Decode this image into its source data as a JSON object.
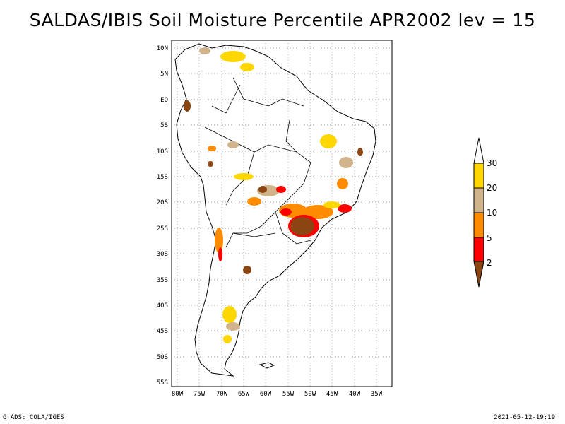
{
  "title": "SALDAS/IBIS Soil Moisture Percentile APR2002 lev = 15",
  "map": {
    "y_ticks": [
      "10N",
      "5N",
      "EQ",
      "5S",
      "10S",
      "15S",
      "20S",
      "25S",
      "30S",
      "35S",
      "40S",
      "45S",
      "50S",
      "55S"
    ],
    "x_ticks": [
      "80W",
      "75W",
      "70W",
      "65W",
      "60W",
      "55W",
      "50W",
      "45W",
      "40W",
      "35W"
    ]
  },
  "legend": {
    "colors": [
      "#8b4513",
      "#ff0000",
      "#ff8c00",
      "#d2b48c",
      "#ffd700",
      "#ffffff"
    ],
    "labels": [
      "2",
      "5",
      "10",
      "20",
      "30"
    ]
  },
  "footer": {
    "left": "GrADS: COLA/IGES",
    "right": "2021-05-12-19:19"
  }
}
